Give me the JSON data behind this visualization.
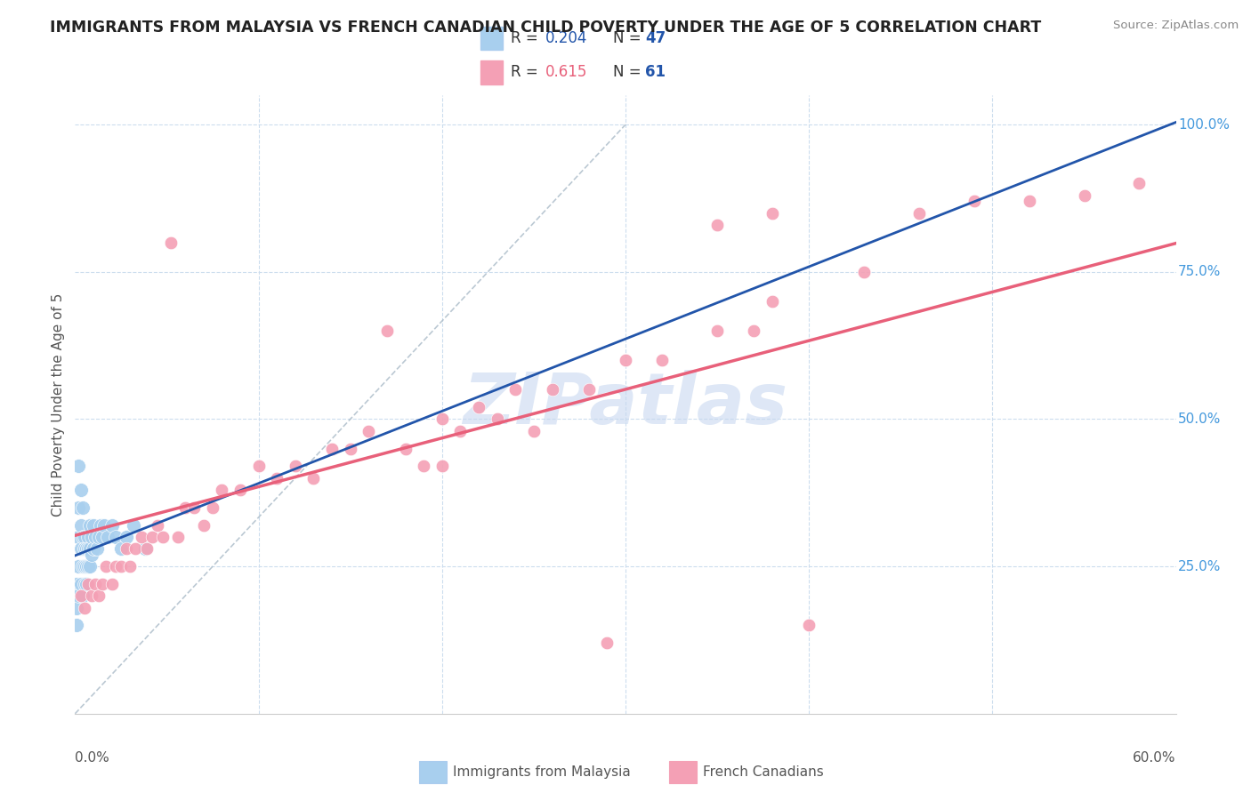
{
  "title": "IMMIGRANTS FROM MALAYSIA VS FRENCH CANADIAN CHILD POVERTY UNDER THE AGE OF 5 CORRELATION CHART",
  "source": "Source: ZipAtlas.com",
  "ylabel": "Child Poverty Under the Age of 5",
  "xlim": [
    0.0,
    0.6
  ],
  "ylim": [
    0.0,
    1.05
  ],
  "xticks": [
    0.0,
    0.6
  ],
  "yticks": [
    0.25,
    0.5,
    0.75,
    1.0
  ],
  "xticklabels_left": "0.0%",
  "xticklabels_right": "60.0%",
  "yticklabels": [
    "25.0%",
    "50.0%",
    "75.0%",
    "100.0%"
  ],
  "blue_color": "#A8CFEE",
  "pink_color": "#F4A0B5",
  "blue_line_color": "#2255AA",
  "pink_line_color": "#E8607A",
  "diag_line_color": "#AABBCC",
  "R_blue": 0.204,
  "N_blue": 47,
  "R_pink": 0.615,
  "N_pink": 61,
  "legend_labels": [
    "Immigrants from Malaysia",
    "French Canadians"
  ],
  "watermark": "ZIPatlas",
  "watermark_color": "#C8D8F0",
  "blue_label_color": "#2255AA",
  "pink_label_color": "#E8607A",
  "ytick_color": "#4499DD",
  "blue_scatter_x": [
    0.001,
    0.001,
    0.001,
    0.001,
    0.002,
    0.002,
    0.002,
    0.002,
    0.002,
    0.003,
    0.003,
    0.003,
    0.003,
    0.004,
    0.004,
    0.004,
    0.004,
    0.005,
    0.005,
    0.005,
    0.005,
    0.006,
    0.006,
    0.006,
    0.007,
    0.007,
    0.007,
    0.008,
    0.008,
    0.008,
    0.009,
    0.009,
    0.01,
    0.01,
    0.011,
    0.012,
    0.013,
    0.014,
    0.015,
    0.016,
    0.018,
    0.02,
    0.022,
    0.025,
    0.028,
    0.032,
    0.038
  ],
  "blue_scatter_y": [
    0.22,
    0.2,
    0.18,
    0.15,
    0.42,
    0.35,
    0.3,
    0.25,
    0.2,
    0.38,
    0.32,
    0.28,
    0.22,
    0.35,
    0.3,
    0.25,
    0.2,
    0.3,
    0.28,
    0.25,
    0.22,
    0.28,
    0.25,
    0.22,
    0.3,
    0.28,
    0.25,
    0.32,
    0.28,
    0.25,
    0.3,
    0.27,
    0.32,
    0.28,
    0.3,
    0.28,
    0.3,
    0.32,
    0.3,
    0.32,
    0.3,
    0.32,
    0.3,
    0.28,
    0.3,
    0.32,
    0.28
  ],
  "pink_scatter_x": [
    0.003,
    0.005,
    0.007,
    0.009,
    0.011,
    0.013,
    0.015,
    0.017,
    0.02,
    0.022,
    0.025,
    0.028,
    0.03,
    0.033,
    0.036,
    0.039,
    0.042,
    0.045,
    0.048,
    0.052,
    0.056,
    0.06,
    0.065,
    0.07,
    0.075,
    0.08,
    0.09,
    0.1,
    0.11,
    0.12,
    0.13,
    0.14,
    0.15,
    0.16,
    0.17,
    0.18,
    0.19,
    0.2,
    0.21,
    0.22,
    0.23,
    0.24,
    0.26,
    0.28,
    0.3,
    0.32,
    0.35,
    0.37,
    0.2,
    0.25,
    0.29,
    0.38,
    0.4,
    0.43,
    0.46,
    0.49,
    0.52,
    0.55,
    0.58,
    0.35,
    0.38
  ],
  "pink_scatter_y": [
    0.2,
    0.18,
    0.22,
    0.2,
    0.22,
    0.2,
    0.22,
    0.25,
    0.22,
    0.25,
    0.25,
    0.28,
    0.25,
    0.28,
    0.3,
    0.28,
    0.3,
    0.32,
    0.3,
    0.8,
    0.3,
    0.35,
    0.35,
    0.32,
    0.35,
    0.38,
    0.38,
    0.42,
    0.4,
    0.42,
    0.4,
    0.45,
    0.45,
    0.48,
    0.65,
    0.45,
    0.42,
    0.5,
    0.48,
    0.52,
    0.5,
    0.55,
    0.55,
    0.55,
    0.6,
    0.6,
    0.65,
    0.65,
    0.42,
    0.48,
    0.12,
    0.7,
    0.15,
    0.75,
    0.85,
    0.87,
    0.87,
    0.88,
    0.9,
    0.83,
    0.85
  ]
}
